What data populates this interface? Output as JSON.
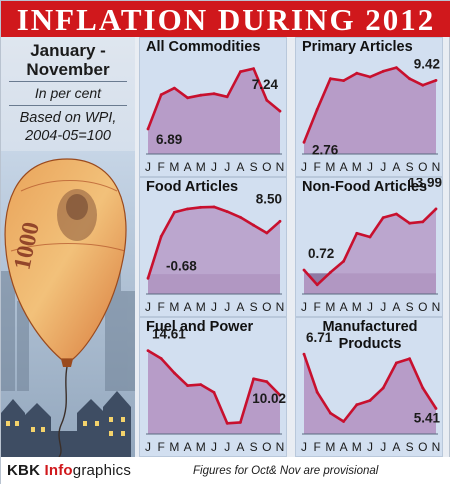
{
  "header": {
    "title": "INFLATION DURING 2012"
  },
  "info": {
    "period_line1": "January -",
    "period_line2": "November",
    "unit": "In per cent",
    "base_line1": "Based on WPI,",
    "base_line2": "2004-05=100"
  },
  "footer": {
    "brand_part1": "KBK",
    "brand_part2": "Info",
    "brand_part3": "graphics",
    "note": "Figures for Oct& Nov are provisional"
  },
  "colors": {
    "header_bg": "#d0181c",
    "area_fill": "#b79cc8",
    "line": "#c8102e",
    "negative_band": "#8f7aa4",
    "panel_bg": "#d2dff0"
  },
  "chart_data": [
    {
      "type": "area",
      "title": "All Commodities",
      "categories": [
        "J",
        "F",
        "M",
        "A",
        "M",
        "J",
        "J",
        "A",
        "S",
        "O",
        "N"
      ],
      "values": [
        6.89,
        7.56,
        7.69,
        7.5,
        7.55,
        7.58,
        7.52,
        8.01,
        8.07,
        7.45,
        7.24
      ],
      "labels": [
        {
          "text": "6.89",
          "index": 0
        },
        {
          "text": "7.24",
          "index": 10
        }
      ]
    },
    {
      "type": "area",
      "title": "Primary Articles",
      "categories": [
        "J",
        "F",
        "M",
        "A",
        "M",
        "J",
        "J",
        "A",
        "S",
        "O",
        "N"
      ],
      "values": [
        2.76,
        6.3,
        9.6,
        9.4,
        10.2,
        9.8,
        10.4,
        10.8,
        9.6,
        8.9,
        9.42
      ],
      "labels": [
        {
          "text": "2.76",
          "index": 0
        },
        {
          "text": "9.42",
          "index": 10
        }
      ]
    },
    {
      "type": "area",
      "title": "Food Articles",
      "categories": [
        "J",
        "F",
        "M",
        "A",
        "M",
        "J",
        "J",
        "A",
        "S",
        "O",
        "N"
      ],
      "values": [
        -0.68,
        6.07,
        9.94,
        10.49,
        10.74,
        10.81,
        10.06,
        9.14,
        7.86,
        6.62,
        8.5
      ],
      "labels": [
        {
          "text": "-0.68",
          "index": 0
        },
        {
          "text": "8.50",
          "index": 10
        }
      ]
    },
    {
      "type": "area",
      "title": "Non-Food Articles",
      "categories": [
        "J",
        "F",
        "M",
        "A",
        "M",
        "J",
        "J",
        "A",
        "S",
        "O",
        "N"
      ],
      "values": [
        0.72,
        -2.5,
        0.2,
        2.6,
        8.7,
        7.9,
        12.1,
        12.9,
        10.9,
        11.2,
        13.99
      ],
      "labels": [
        {
          "text": "0.72",
          "index": 0
        },
        {
          "text": "13.99",
          "index": 10
        }
      ]
    },
    {
      "type": "area",
      "title": "Fuel and Power",
      "categories": [
        "J",
        "F",
        "M",
        "A",
        "M",
        "J",
        "J",
        "A",
        "S",
        "O",
        "N"
      ],
      "values": [
        14.61,
        13.8,
        12.3,
        11.0,
        11.1,
        10.3,
        7.1,
        7.2,
        11.7,
        11.4,
        10.02
      ],
      "labels": [
        {
          "text": "14.61",
          "index": 0
        },
        {
          "text": "10.02",
          "index": 10
        }
      ]
    },
    {
      "type": "area",
      "title_line1": "Manufactured",
      "title_line2": "Products",
      "categories": [
        "J",
        "F",
        "M",
        "A",
        "M",
        "J",
        "J",
        "A",
        "S",
        "O",
        "N"
      ],
      "values": [
        6.71,
        5.8,
        5.3,
        5.1,
        5.5,
        5.6,
        5.9,
        6.5,
        6.6,
        5.9,
        5.41
      ],
      "labels": [
        {
          "text": "6.71",
          "index": 0
        },
        {
          "text": "5.41",
          "index": 10
        }
      ]
    }
  ]
}
